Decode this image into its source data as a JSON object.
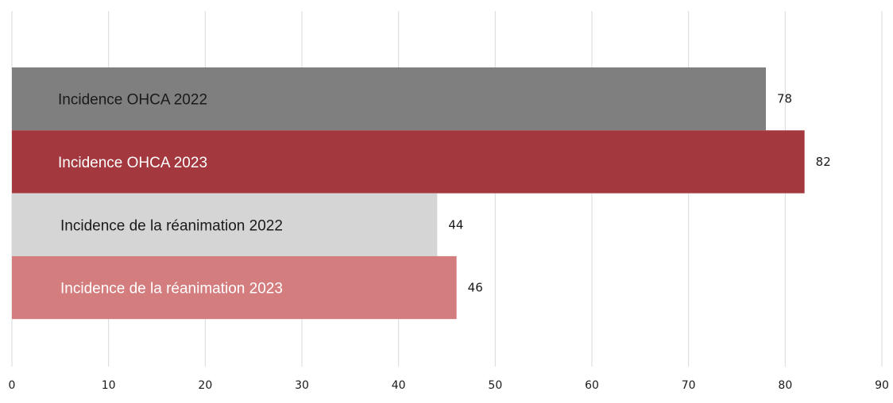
{
  "chart_data": {
    "type": "bar",
    "orientation": "horizontal",
    "categories": [
      "Incidence OHCA  2022",
      "Incidence OHCA  2023",
      "Incidence de la réanimation 2022",
      "Incidence de la réanimation 2023"
    ],
    "values": [
      78,
      82,
      44,
      46
    ],
    "value_labels": [
      "78",
      "82",
      "44",
      "46"
    ],
    "colors": [
      "#7f7f7f",
      "#a3383e",
      "#d5d5d5",
      "#d47d7f"
    ],
    "label_colors": [
      "#1a1a1a",
      "#ffffff",
      "#1a1a1a",
      "#ffffff"
    ],
    "xlim": [
      0,
      90
    ],
    "xticks": [
      "0",
      "10",
      "20",
      "30",
      "40",
      "50",
      "60",
      "70",
      "80",
      "90"
    ],
    "grid": true,
    "legend": "none"
  }
}
